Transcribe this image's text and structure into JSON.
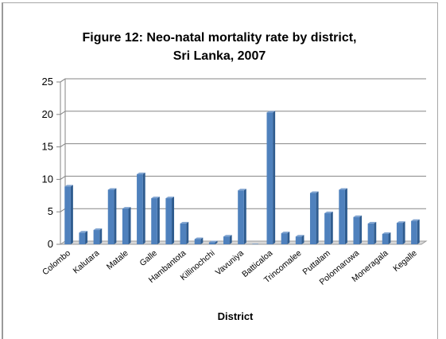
{
  "chart_data": {
    "type": "bar",
    "title": "Figure 12: Neo-natal mortality rate by district,",
    "subtitle": "Sri Lanka, 2007",
    "xlabel": "District",
    "ylabel": "",
    "ylim": [
      0,
      25
    ],
    "yticks": [
      0,
      5,
      10,
      15,
      20,
      25
    ],
    "grid": true,
    "legend": "none",
    "bar_color": "#4f81bd",
    "categories": [
      "Colombo",
      "",
      "Kalutara",
      "",
      "Matale",
      "",
      "Galle",
      "",
      "Hambantota",
      "",
      "Killinochchi",
      "",
      "Vavuniya",
      "",
      "Batticaloa",
      "",
      "Trincomalee",
      "",
      "Puttalam",
      "",
      "Polonnaruwa",
      "",
      "Moneragala",
      "",
      "Kegalle"
    ],
    "values": [
      8.9,
      1.8,
      2.2,
      8.4,
      5.5,
      10.8,
      7.1,
      7.1,
      3.2,
      0.8,
      0.3,
      1.2,
      8.3,
      0,
      20.3,
      1.7,
      1.2,
      7.9,
      4.8,
      8.4,
      4.2,
      3.2,
      1.6,
      3.3,
      3.6
    ]
  }
}
